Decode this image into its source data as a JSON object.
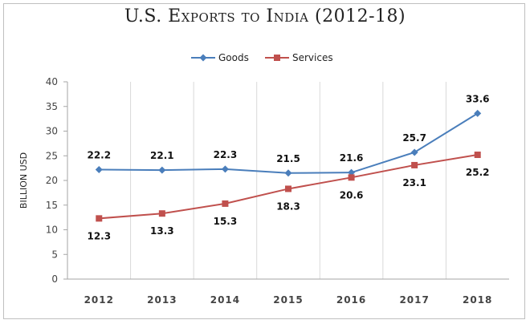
{
  "chart_data": {
    "type": "line",
    "title": "U.S. Exports to India (2012-18)",
    "xlabel": "",
    "ylabel": "BILLION USD",
    "categories": [
      "2012",
      "2013",
      "2014",
      "2015",
      "2016",
      "2017",
      "2018"
    ],
    "ylim": [
      0,
      40
    ],
    "yticks": [
      0,
      5,
      10,
      15,
      20,
      25,
      30,
      35,
      40
    ],
    "grid": "vertical",
    "legend": "top-center",
    "series": [
      {
        "name": "Goods",
        "values": [
          22.2,
          22.1,
          22.3,
          21.5,
          21.6,
          25.7,
          33.6
        ],
        "labels": [
          "22.2",
          "22.1",
          "22.3",
          "21.5",
          "21.6",
          "25.7",
          "33.6"
        ],
        "color": "#4a7ebb",
        "marker": "diamond"
      },
      {
        "name": "Services",
        "values": [
          12.3,
          13.3,
          15.3,
          18.3,
          20.6,
          23.1,
          25.2
        ],
        "labels": [
          "12.3",
          "13.3",
          "15.3",
          "18.3",
          "20.6",
          "23.1",
          "25.2"
        ],
        "color": "#c0504d",
        "marker": "square"
      }
    ]
  }
}
